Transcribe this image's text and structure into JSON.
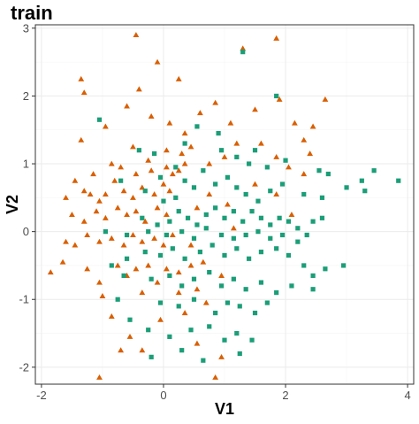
{
  "chart_data": {
    "type": "scatter",
    "title": "train",
    "xlabel": "V1",
    "ylabel": "V2",
    "xlim": [
      -2.1,
      4.1
    ],
    "ylim": [
      -2.25,
      3.05
    ],
    "x_ticks": [
      -2,
      0,
      2,
      4
    ],
    "y_ticks": [
      -2,
      -1,
      0,
      1,
      2,
      3
    ],
    "grid": true,
    "legend": "none",
    "series": [
      {
        "shape": "triangle",
        "color": "#D95F02",
        "points": [
          [
            -0.45,
            2.9
          ],
          [
            -0.1,
            2.5
          ],
          [
            0.25,
            2.25
          ],
          [
            1.3,
            2.7
          ],
          [
            1.85,
            2.85
          ],
          [
            -1.35,
            2.25
          ],
          [
            -1.3,
            2.05
          ],
          [
            -0.4,
            2.1
          ],
          [
            -0.6,
            1.85
          ],
          [
            -0.95,
            1.55
          ],
          [
            -1.35,
            1.35
          ],
          [
            -0.2,
            1.7
          ],
          [
            0.1,
            1.6
          ],
          [
            0.35,
            1.45
          ],
          [
            0.6,
            1.75
          ],
          [
            0.85,
            1.9
          ],
          [
            1.1,
            1.6
          ],
          [
            1.5,
            1.8
          ],
          [
            1.9,
            1.95
          ],
          [
            2.15,
            1.6
          ],
          [
            2.3,
            1.35
          ],
          [
            2.65,
            1.95
          ],
          [
            2.45,
            1.55
          ],
          [
            -0.5,
            1.25
          ],
          [
            -0.25,
            1.05
          ],
          [
            0.05,
            1.2
          ],
          [
            0.3,
            1.15
          ],
          [
            0.45,
            1.25
          ],
          [
            0.75,
            1.0
          ],
          [
            1.0,
            1.1
          ],
          [
            1.2,
            1.3
          ],
          [
            1.6,
            1.3
          ],
          [
            1.85,
            1.1
          ],
          [
            2.05,
            0.95
          ],
          [
            2.3,
            0.85
          ],
          [
            2.4,
            1.15
          ],
          [
            -0.85,
            1.0
          ],
          [
            -0.7,
            0.95
          ],
          [
            -0.45,
            0.85
          ],
          [
            -0.2,
            0.9
          ],
          [
            0.05,
            0.95
          ],
          [
            0.15,
            0.85
          ],
          [
            0.25,
            0.9
          ],
          [
            0.35,
            1.0
          ],
          [
            -1.15,
            0.85
          ],
          [
            -1.45,
            0.75
          ],
          [
            -1.3,
            0.6
          ],
          [
            -1.6,
            0.5
          ],
          [
            -1.2,
            0.55
          ],
          [
            -1.05,
            0.45
          ],
          [
            -0.95,
            0.55
          ],
          [
            -0.8,
            0.75
          ],
          [
            -0.65,
            0.6
          ],
          [
            -0.5,
            0.5
          ],
          [
            -0.35,
            0.65
          ],
          [
            -0.15,
            0.55
          ],
          [
            0.0,
            0.7
          ],
          [
            0.1,
            0.6
          ],
          [
            -1.5,
            0.25
          ],
          [
            -1.3,
            0.15
          ],
          [
            -1.1,
            0.3
          ],
          [
            -0.95,
            0.2
          ],
          [
            -0.75,
            0.35
          ],
          [
            -0.6,
            0.25
          ],
          [
            -0.45,
            0.3
          ],
          [
            -0.3,
            0.15
          ],
          [
            -0.1,
            0.35
          ],
          [
            0.05,
            0.25
          ],
          [
            -1.6,
            -0.15
          ],
          [
            -1.45,
            -0.2
          ],
          [
            -1.25,
            -0.05
          ],
          [
            -1.05,
            -0.15
          ],
          [
            -0.85,
            -0.1
          ],
          [
            -0.65,
            -0.2
          ],
          [
            -0.5,
            -0.05
          ],
          [
            -0.35,
            -0.15
          ],
          [
            -0.15,
            -0.1
          ],
          [
            0.0,
            -0.2
          ],
          [
            0.15,
            -0.05
          ],
          [
            -1.85,
            -0.6
          ],
          [
            -1.65,
            -0.45
          ],
          [
            -1.25,
            -0.55
          ],
          [
            -1.05,
            -0.75
          ],
          [
            -0.75,
            -0.5
          ],
          [
            -0.6,
            -0.65
          ],
          [
            -0.45,
            -0.55
          ],
          [
            -0.25,
            -0.5
          ],
          [
            0.05,
            -0.55
          ],
          [
            0.25,
            -0.6
          ],
          [
            0.45,
            -0.5
          ],
          [
            -1.0,
            -0.95
          ],
          [
            -0.85,
            -1.25
          ],
          [
            -0.35,
            -0.9
          ],
          [
            -0.1,
            -0.75
          ],
          [
            0.25,
            -0.9
          ],
          [
            0.55,
            -0.85
          ],
          [
            0.7,
            -1.05
          ],
          [
            0.35,
            -1.2
          ],
          [
            -0.05,
            -1.3
          ],
          [
            -0.55,
            -1.55
          ],
          [
            -0.35,
            -1.75
          ],
          [
            -0.7,
            -1.75
          ],
          [
            0.55,
            -1.65
          ],
          [
            0.95,
            -1.85
          ],
          [
            -1.05,
            -2.15
          ],
          [
            0.85,
            -2.15
          ],
          [
            0.65,
            -0.45
          ],
          [
            0.95,
            -0.65
          ],
          [
            0.55,
            0.35
          ],
          [
            0.75,
            0.55
          ],
          [
            1.05,
            0.4
          ],
          [
            1.5,
            0.7
          ],
          [
            1.85,
            0.55
          ],
          [
            2.1,
            0.25
          ],
          [
            1.15,
            0.05
          ],
          [
            0.45,
            -0.2
          ]
        ]
      },
      {
        "shape": "square",
        "color": "#1B9E77",
        "points": [
          [
            1.3,
            2.65
          ],
          [
            1.85,
            2.0
          ],
          [
            -1.05,
            1.65
          ],
          [
            -0.4,
            1.2
          ],
          [
            -0.15,
            1.15
          ],
          [
            0.35,
            1.3
          ],
          [
            0.55,
            1.55
          ],
          [
            0.9,
            1.45
          ],
          [
            1.2,
            1.1
          ],
          [
            1.4,
            1.0
          ],
          [
            1.7,
            0.95
          ],
          [
            2.0,
            1.05
          ],
          [
            2.55,
            0.9
          ],
          [
            2.7,
            0.85
          ],
          [
            3.25,
            0.75
          ],
          [
            3.45,
            0.9
          ],
          [
            3.85,
            0.75
          ],
          [
            3.0,
            0.65
          ],
          [
            3.3,
            0.6
          ],
          [
            2.6,
            0.5
          ],
          [
            2.3,
            0.55
          ],
          [
            1.95,
            0.7
          ],
          [
            1.75,
            0.6
          ],
          [
            -0.7,
            0.75
          ],
          [
            -0.3,
            0.6
          ],
          [
            0.0,
            0.45
          ],
          [
            0.2,
            0.5
          ],
          [
            0.35,
            0.75
          ],
          [
            0.5,
            0.65
          ],
          [
            0.65,
            0.9
          ],
          [
            0.85,
            0.7
          ],
          [
            1.05,
            0.8
          ],
          [
            1.2,
            0.65
          ],
          [
            1.35,
            0.55
          ],
          [
            1.55,
            0.45
          ],
          [
            -0.35,
            0.2
          ],
          [
            -0.1,
            0.1
          ],
          [
            0.1,
            0.15
          ],
          [
            0.25,
            0.3
          ],
          [
            0.4,
            0.2
          ],
          [
            0.55,
            0.1
          ],
          [
            0.7,
            0.25
          ],
          [
            0.85,
            0.35
          ],
          [
            1.0,
            0.2
          ],
          [
            1.15,
            0.3
          ],
          [
            1.3,
            0.15
          ],
          [
            1.45,
            0.3
          ],
          [
            1.6,
            0.2
          ],
          [
            1.75,
            0.1
          ],
          [
            1.9,
            0.2
          ],
          [
            2.05,
            0.15
          ],
          [
            2.2,
            0.05
          ],
          [
            2.45,
            0.15
          ],
          [
            2.6,
            0.2
          ],
          [
            -0.95,
            0.0
          ],
          [
            -0.6,
            -0.05
          ],
          [
            -0.25,
            0.0
          ],
          [
            0.05,
            -0.05
          ],
          [
            0.3,
            0.0
          ],
          [
            0.5,
            -0.1
          ],
          [
            0.7,
            0.05
          ],
          [
            0.95,
            -0.05
          ],
          [
            1.15,
            -0.1
          ],
          [
            1.35,
            -0.05
          ],
          [
            1.55,
            0.0
          ],
          [
            1.75,
            -0.1
          ],
          [
            1.95,
            -0.05
          ],
          [
            2.2,
            -0.15
          ],
          [
            2.35,
            -0.05
          ],
          [
            -0.85,
            -0.5
          ],
          [
            -0.6,
            -0.4
          ],
          [
            -0.3,
            -0.3
          ],
          [
            -0.05,
            -0.35
          ],
          [
            0.15,
            -0.25
          ],
          [
            0.35,
            -0.4
          ],
          [
            0.6,
            -0.3
          ],
          [
            0.8,
            -0.2
          ],
          [
            1.0,
            -0.35
          ],
          [
            1.2,
            -0.25
          ],
          [
            1.4,
            -0.4
          ],
          [
            1.6,
            -0.3
          ],
          [
            1.85,
            -0.25
          ],
          [
            2.05,
            -0.35
          ],
          [
            2.3,
            -0.5
          ],
          [
            2.45,
            -0.65
          ],
          [
            2.65,
            -0.55
          ],
          [
            2.95,
            -0.5
          ],
          [
            2.45,
            -0.85
          ],
          [
            -0.65,
            -0.65
          ],
          [
            -0.2,
            -0.7
          ],
          [
            0.1,
            -0.65
          ],
          [
            0.3,
            -0.8
          ],
          [
            0.5,
            -0.7
          ],
          [
            0.75,
            -0.6
          ],
          [
            0.95,
            -0.8
          ],
          [
            1.15,
            -0.7
          ],
          [
            1.35,
            -0.85
          ],
          [
            1.6,
            -0.75
          ],
          [
            1.85,
            -0.9
          ],
          [
            2.1,
            -0.8
          ],
          [
            -0.05,
            -1.05
          ],
          [
            0.25,
            -1.1
          ],
          [
            0.5,
            -1.0
          ],
          [
            0.85,
            -1.2
          ],
          [
            1.05,
            -1.05
          ],
          [
            1.25,
            -1.1
          ],
          [
            1.5,
            -1.2
          ],
          [
            1.7,
            -1.05
          ],
          [
            -0.25,
            -1.45
          ],
          [
            0.1,
            -1.55
          ],
          [
            0.45,
            -1.45
          ],
          [
            0.75,
            -1.4
          ],
          [
            1.0,
            -1.6
          ],
          [
            1.2,
            -1.5
          ],
          [
            1.45,
            -1.6
          ],
          [
            -0.2,
            -1.85
          ],
          [
            0.3,
            -1.75
          ],
          [
            0.65,
            -1.9
          ],
          [
            1.25,
            -1.8
          ],
          [
            -0.55,
            -1.3
          ],
          [
            -0.75,
            -1.0
          ],
          [
            0.2,
            0.95
          ],
          [
            -0.05,
            0.8
          ],
          [
            0.95,
            1.2
          ],
          [
            1.5,
            1.2
          ]
        ]
      }
    ]
  }
}
